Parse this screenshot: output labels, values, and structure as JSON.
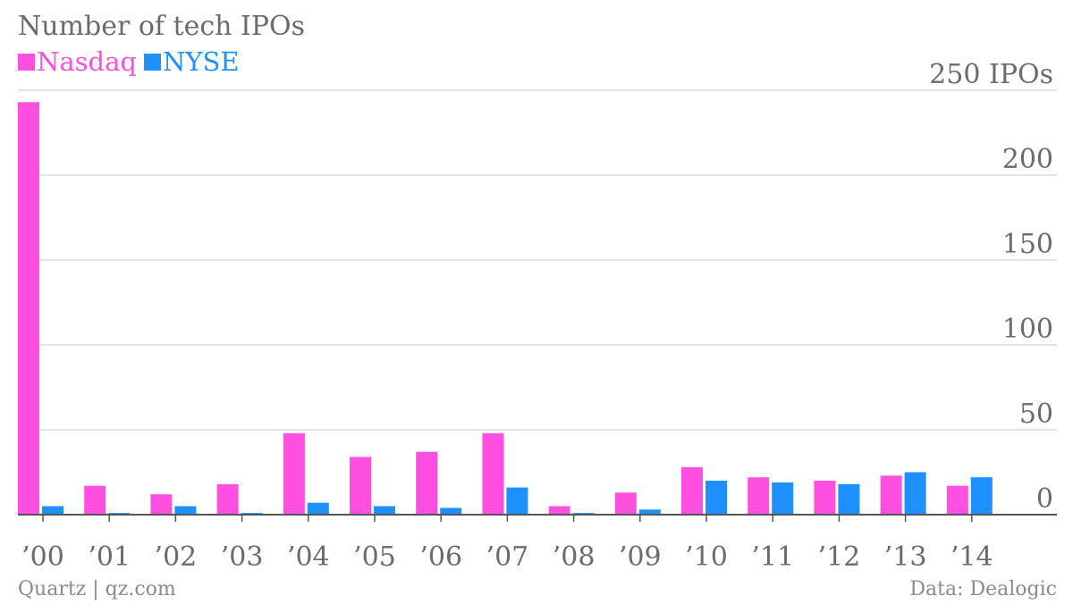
{
  "chart_data": {
    "type": "bar",
    "title": "Number of tech IPOs",
    "categories": [
      "’00",
      "’01",
      "’02",
      "’03",
      "’04",
      "’05",
      "’06",
      "’07",
      "’08",
      "’09",
      "’10",
      "’11",
      "’12",
      "’13",
      "’14"
    ],
    "series": [
      {
        "name": "Nasdaq",
        "color": "#ff4fe0",
        "values": [
          243,
          17,
          12,
          18,
          48,
          34,
          37,
          48,
          5,
          13,
          28,
          22,
          20,
          23,
          17
        ]
      },
      {
        "name": "NYSE",
        "color": "#1e90ff",
        "values": [
          5,
          1,
          5,
          1,
          7,
          5,
          4,
          16,
          1,
          3,
          20,
          19,
          18,
          25,
          22
        ]
      }
    ],
    "ylim": [
      0,
      250
    ],
    "yticks": [
      {
        "value": 250,
        "label": "250 IPOs"
      },
      {
        "value": 200,
        "label": "200"
      },
      {
        "value": 150,
        "label": "150"
      },
      {
        "value": 100,
        "label": "100"
      },
      {
        "value": 50,
        "label": "50"
      },
      {
        "value": 0,
        "label": "0"
      }
    ],
    "grid": true,
    "legend": "top-left"
  },
  "footer": {
    "source_left": "Quartz | qz.com",
    "source_right": "Data: Dealogic"
  }
}
